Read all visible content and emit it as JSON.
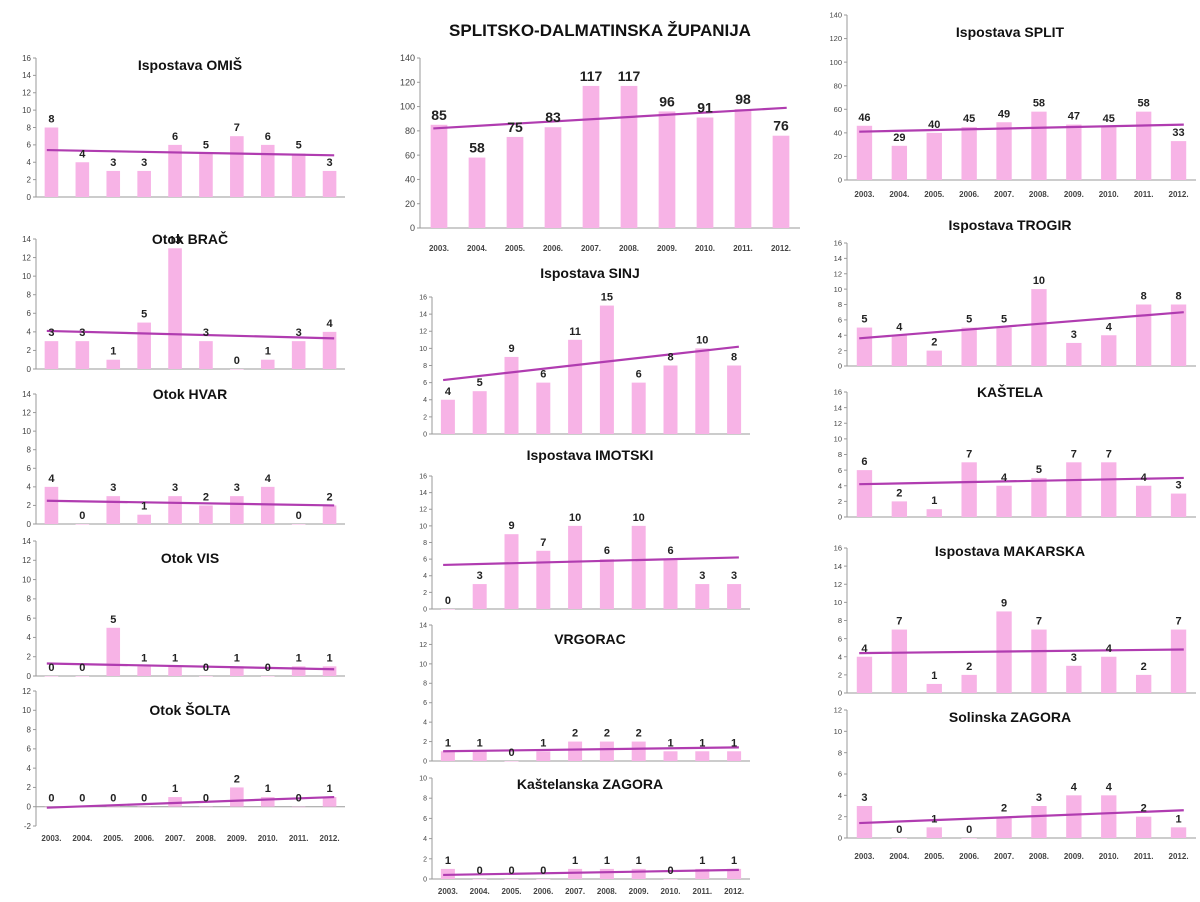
{
  "years": [
    "2003.",
    "2004.",
    "2005.",
    "2006.",
    "2007.",
    "2008.",
    "2009.",
    "2010.",
    "2011.",
    "2012."
  ],
  "colors": {
    "bar": "#f7b3e6",
    "trend": "#b03cb0",
    "axis": "#9a9a9a"
  },
  "chart_data": [
    {
      "id": "omis",
      "type": "bar",
      "title": "Ispostava OMIŠ",
      "values": [
        8,
        4,
        3,
        3,
        6,
        5,
        7,
        6,
        5,
        3
      ],
      "ylim": [
        0,
        16
      ],
      "yticks": [
        0,
        2,
        4,
        6,
        8,
        10,
        12,
        14,
        16
      ],
      "trend": [
        5.4,
        4.8
      ],
      "show_x_labels": false
    },
    {
      "id": "brac",
      "type": "bar",
      "title": "Otok BRAČ",
      "values": [
        3,
        3,
        1,
        5,
        13,
        3,
        0,
        1,
        3,
        4
      ],
      "ylim": [
        0,
        14
      ],
      "yticks": [
        0,
        2,
        4,
        6,
        8,
        10,
        12,
        14
      ],
      "trend": [
        4.1,
        3.3
      ],
      "show_x_labels": false
    },
    {
      "id": "hvar",
      "type": "bar",
      "title": "Otok HVAR",
      "values": [
        4,
        0,
        3,
        1,
        3,
        2,
        3,
        4,
        0,
        2
      ],
      "ylim": [
        0,
        14
      ],
      "yticks": [
        0,
        2,
        4,
        6,
        8,
        10,
        12,
        14
      ],
      "trend": [
        2.5,
        2.0
      ],
      "show_x_labels": false
    },
    {
      "id": "vis",
      "type": "bar",
      "title": "Otok VIS",
      "values": [
        0,
        0,
        5,
        1,
        1,
        0,
        1,
        0,
        1,
        1
      ],
      "ylim": [
        0,
        14
      ],
      "yticks": [
        0,
        2,
        4,
        6,
        8,
        10,
        12,
        14
      ],
      "trend": [
        1.3,
        0.7
      ],
      "show_x_labels": false
    },
    {
      "id": "solta",
      "type": "bar",
      "title": "Otok ŠOLTA",
      "values": [
        0,
        0,
        0,
        0,
        1,
        0,
        2,
        1,
        0,
        1
      ],
      "ylim": [
        -2,
        12
      ],
      "yticks": [
        -2,
        0,
        2,
        4,
        6,
        8,
        10,
        12
      ],
      "trend": [
        -0.1,
        1.0
      ],
      "show_x_labels": true
    },
    {
      "id": "zupanija",
      "type": "bar",
      "title": "SPLITSKO-DALMATINSKA ŽUPANIJA",
      "values": [
        85,
        58,
        75,
        83,
        117,
        117,
        96,
        91,
        98,
        76
      ],
      "ylim": [
        0,
        140
      ],
      "yticks": [
        0,
        20,
        40,
        60,
        80,
        100,
        120,
        140
      ],
      "trend": [
        82,
        99
      ],
      "show_x_labels": true
    },
    {
      "id": "sinj",
      "type": "bar",
      "title": "Ispostava SINJ",
      "values": [
        4,
        5,
        9,
        6,
        11,
        15,
        6,
        8,
        10,
        8
      ],
      "ylim": [
        0,
        16
      ],
      "yticks": [
        0,
        2,
        4,
        6,
        8,
        10,
        12,
        14,
        16
      ],
      "trend": [
        6.3,
        10.2
      ],
      "show_x_labels": false
    },
    {
      "id": "imotski",
      "type": "bar",
      "title": "Ispostava IMOTSKI",
      "values": [
        0,
        3,
        9,
        7,
        10,
        6,
        10,
        6,
        3,
        3
      ],
      "ylim": [
        0,
        16
      ],
      "yticks": [
        0,
        2,
        4,
        6,
        8,
        10,
        12,
        14,
        16
      ],
      "trend": [
        5.3,
        6.2
      ],
      "show_x_labels": false
    },
    {
      "id": "vrgorac",
      "type": "bar",
      "title": "VRGORAC",
      "values": [
        1,
        1,
        0,
        1,
        2,
        2,
        2,
        1,
        1,
        1
      ],
      "ylim": [
        0,
        14
      ],
      "yticks": [
        0,
        2,
        4,
        6,
        8,
        10,
        12,
        14
      ],
      "trend": [
        1.0,
        1.4
      ],
      "show_x_labels": false
    },
    {
      "id": "kastelanska",
      "type": "bar",
      "title": "Kaštelanska ZAGORA",
      "values": [
        1,
        0,
        0,
        0,
        1,
        1,
        1,
        0,
        1,
        1
      ],
      "ylim": [
        0,
        10
      ],
      "yticks": [
        0,
        2,
        4,
        6,
        8,
        10
      ],
      "trend": [
        0.4,
        0.9
      ],
      "show_x_labels": true
    },
    {
      "id": "split",
      "type": "bar",
      "title": "Ispostava SPLIT",
      "values": [
        46,
        29,
        40,
        45,
        49,
        58,
        47,
        45,
        58,
        33
      ],
      "ylim": [
        0,
        140
      ],
      "yticks": [
        0,
        20,
        40,
        60,
        80,
        100,
        120,
        140
      ],
      "trend": [
        41,
        47
      ],
      "show_x_labels": true
    },
    {
      "id": "trogir",
      "type": "bar",
      "title": "Ispostava TROGIR",
      "values": [
        5,
        4,
        2,
        5,
        5,
        10,
        3,
        4,
        8,
        8
      ],
      "ylim": [
        0,
        16
      ],
      "yticks": [
        0,
        2,
        4,
        6,
        8,
        10,
        12,
        14,
        16
      ],
      "trend": [
        3.6,
        7.0
      ],
      "show_x_labels": false
    },
    {
      "id": "kastela",
      "type": "bar",
      "title": "KAŠTELA",
      "values": [
        6,
        2,
        1,
        7,
        4,
        5,
        7,
        7,
        4,
        3
      ],
      "ylim": [
        0,
        16
      ],
      "yticks": [
        0,
        2,
        4,
        6,
        8,
        10,
        12,
        14,
        16
      ],
      "trend": [
        4.2,
        5.0
      ],
      "show_x_labels": false
    },
    {
      "id": "makarska",
      "type": "bar",
      "title": "Ispostava MAKARSKA",
      "values": [
        4,
        7,
        1,
        2,
        9,
        7,
        3,
        4,
        2,
        7
      ],
      "ylim": [
        0,
        16
      ],
      "yticks": [
        0,
        2,
        4,
        6,
        8,
        10,
        12,
        14,
        16
      ],
      "trend": [
        4.4,
        4.8
      ],
      "show_x_labels": false
    },
    {
      "id": "solinska",
      "type": "bar",
      "title": "Solinska ZAGORA",
      "values": [
        3,
        0,
        1,
        0,
        2,
        3,
        4,
        4,
        2,
        1
      ],
      "ylim": [
        0,
        12
      ],
      "yticks": [
        0,
        2,
        4,
        6,
        8,
        10,
        12
      ],
      "trend": [
        1.4,
        2.6
      ],
      "show_x_labels": true
    }
  ]
}
